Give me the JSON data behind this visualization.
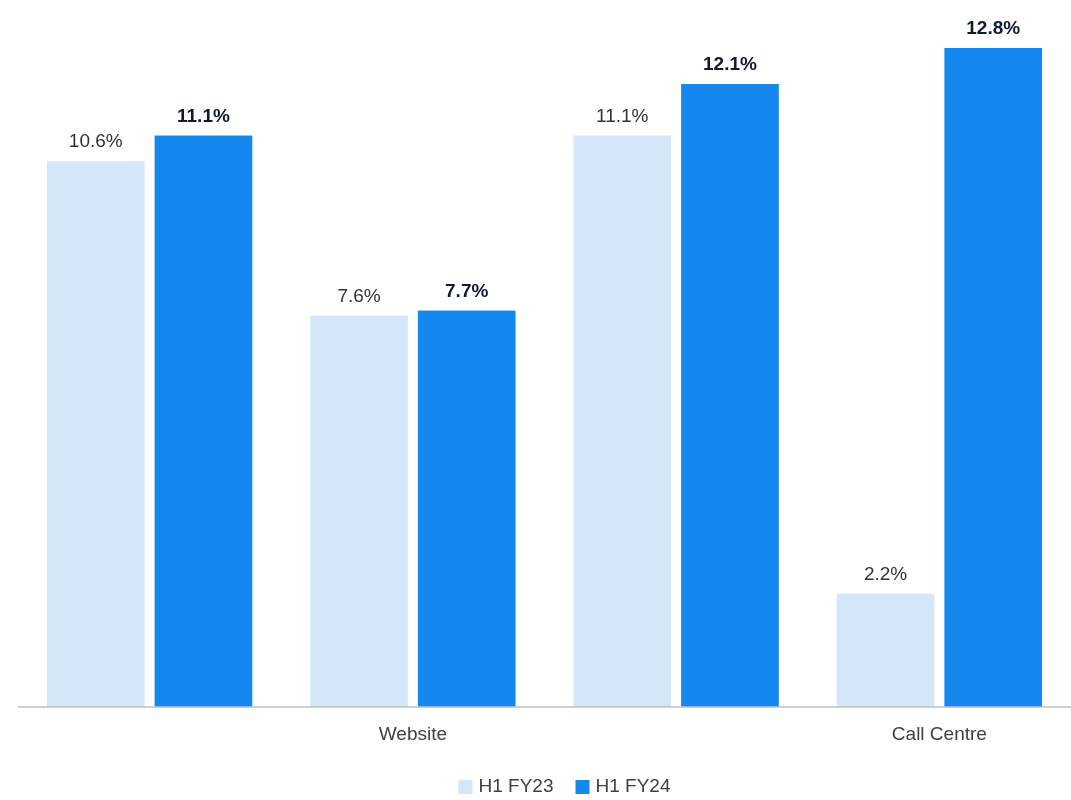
{
  "chart_data": {
    "type": "bar",
    "categories": [
      null,
      "Website",
      null,
      "Call Centre"
    ],
    "series": [
      {
        "name": "H1 FY23",
        "color": "#d4e7f9",
        "values": [
          10.6,
          7.6,
          11.1,
          2.2
        ],
        "value_labels": [
          "10.6%",
          "7.6%",
          "11.1%",
          "2.2%"
        ]
      },
      {
        "name": "H1 FY24",
        "color": "#1488ef",
        "values": [
          11.1,
          7.7,
          12.1,
          12.8
        ],
        "value_labels": [
          "11.1%",
          "7.7%",
          "12.1%",
          "12.8%"
        ]
      }
    ],
    "legend": "bottom"
  }
}
